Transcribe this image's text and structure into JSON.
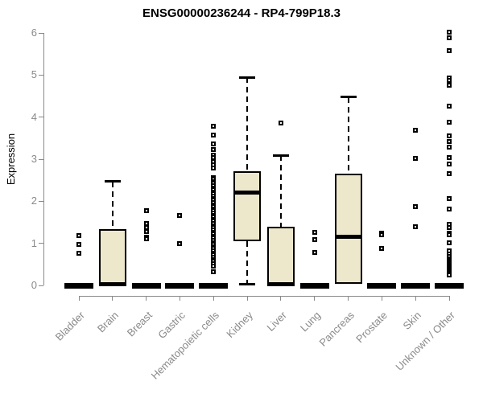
{
  "chart_data": {
    "type": "boxplot",
    "title": "ENSG00000236244 - RP4-799P18.3",
    "ylabel": "Expression",
    "xlabel": "",
    "ylim": [
      0,
      6
    ],
    "yticks": [
      0,
      1,
      2,
      3,
      4,
      5,
      6
    ],
    "grid": false,
    "legend": null,
    "categories": [
      "Bladder",
      "Brain",
      "Breast",
      "Gastric",
      "Hematopoietic cells",
      "Kidney",
      "Liver",
      "Lung",
      "Pancreas",
      "Prostate",
      "Skin",
      "Unknown / Other"
    ],
    "series": [
      {
        "name": "Bladder",
        "q1": 0,
        "median": 0,
        "q3": 0,
        "whisker_low": 0,
        "whisker_high": 0,
        "outliers": [
          1.19,
          0.97,
          0.76
        ]
      },
      {
        "name": "Brain",
        "q1": 0,
        "median": 0.02,
        "q3": 1.33,
        "whisker_low": 0,
        "whisker_high": 2.47,
        "outliers": []
      },
      {
        "name": "Breast",
        "q1": 0,
        "median": 0,
        "q3": 0,
        "whisker_low": 0,
        "whisker_high": 0,
        "outliers": [
          1.78,
          1.47,
          1.37,
          1.28,
          1.15,
          1.1
        ]
      },
      {
        "name": "Gastric",
        "q1": 0,
        "median": 0,
        "q3": 0,
        "whisker_low": 0,
        "whisker_high": 0,
        "outliers": [
          1.67,
          0.99
        ]
      },
      {
        "name": "Hematopoietic cells",
        "q1": 0,
        "median": 0,
        "q3": 0,
        "whisker_low": 0,
        "whisker_high": 0,
        "outliers": [
          3.79,
          3.57,
          3.36,
          3.22,
          3.1,
          3.03,
          2.95,
          2.87,
          2.79,
          2.57,
          2.52,
          2.47,
          2.42,
          2.37,
          2.32,
          2.27,
          2.22,
          2.17,
          2.12,
          2.07,
          2.02,
          1.97,
          1.92,
          1.87,
          1.82,
          1.77,
          1.72,
          1.67,
          1.62,
          1.57,
          1.52,
          1.47,
          1.42,
          1.37,
          1.32,
          1.27,
          1.22,
          1.17,
          1.12,
          1.07,
          1.02,
          0.97,
          0.92,
          0.87,
          0.82,
          0.77,
          0.72,
          0.67,
          0.62,
          0.57,
          0.52,
          0.45,
          0.32
        ]
      },
      {
        "name": "Kidney",
        "q1": 1.05,
        "median": 2.2,
        "q3": 2.71,
        "whisker_low": 0.03,
        "whisker_high": 4.94,
        "outliers": []
      },
      {
        "name": "Liver",
        "q1": 0,
        "median": 0.02,
        "q3": 1.4,
        "whisker_low": 0,
        "whisker_high": 3.09,
        "outliers": [
          3.86
        ]
      },
      {
        "name": "Lung",
        "q1": 0,
        "median": 0,
        "q3": 0,
        "whisker_low": 0,
        "whisker_high": 0,
        "outliers": [
          1.26,
          1.08,
          0.78
        ]
      },
      {
        "name": "Pancreas",
        "q1": 0.04,
        "median": 1.15,
        "q3": 2.66,
        "whisker_low": 0.04,
        "whisker_high": 4.48,
        "outliers": []
      },
      {
        "name": "Prostate",
        "q1": 0,
        "median": 0,
        "q3": 0,
        "whisker_low": 0,
        "whisker_high": 0,
        "outliers": [
          1.25,
          1.21,
          0.88
        ]
      },
      {
        "name": "Skin",
        "q1": 0,
        "median": 0,
        "q3": 0,
        "whisker_low": 0,
        "whisker_high": 0,
        "outliers": [
          3.69,
          3.02,
          1.87,
          1.4
        ]
      },
      {
        "name": "Unknown / Other",
        "q1": 0,
        "median": 0,
        "q3": 0,
        "whisker_low": 0,
        "whisker_high": 0,
        "outliers": [
          6.01,
          5.88,
          5.58,
          4.93,
          4.88,
          4.76,
          4.27,
          3.87,
          3.55,
          3.42,
          3.29,
          3.03,
          2.88,
          2.66,
          2.06,
          1.82,
          1.45,
          1.38,
          1.25,
          1.2,
          1.02,
          0.83,
          0.75,
          0.68,
          0.64,
          0.6,
          0.56,
          0.52,
          0.48,
          0.44,
          0.4,
          0.36,
          0.32,
          0.29,
          0.25
        ]
      }
    ],
    "colors": {
      "box_fill": "#EDE7CB",
      "box_border": "#000000",
      "median": "#000000",
      "whisker": "#000000",
      "outlier": "#000000",
      "axis": "#8A8A8A",
      "tick_label": "#8A8A8A",
      "title": "#000000"
    }
  }
}
